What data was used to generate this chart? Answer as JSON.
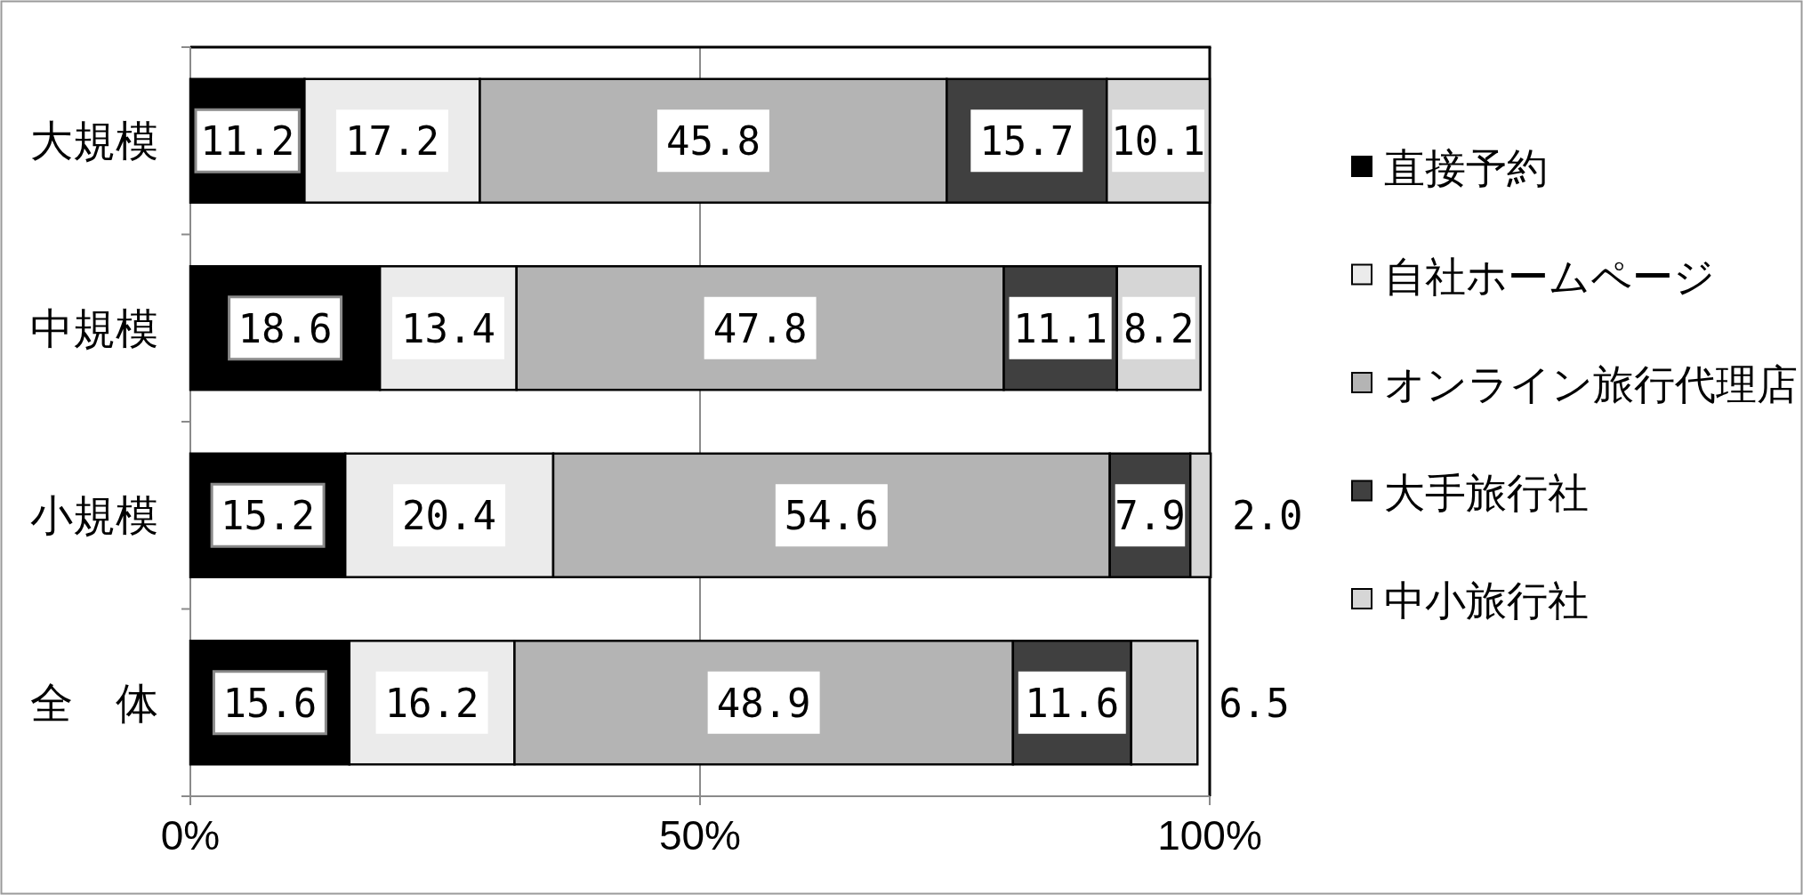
{
  "chart_data": {
    "type": "bar",
    "orientation": "horizontal",
    "stacked": true,
    "categories": [
      "大規模",
      "中規模",
      "小規模",
      "全　体"
    ],
    "series": [
      {
        "name": "直接予約",
        "color": "#000000",
        "values": [
          11.2,
          18.6,
          15.2,
          15.6
        ],
        "value_labels": [
          "11.2",
          "18.6",
          "15.2",
          "15.6"
        ]
      },
      {
        "name": "自社ホームページ",
        "color": "#ebebeb",
        "values": [
          17.2,
          13.4,
          20.4,
          16.2
        ],
        "value_labels": [
          "17.2",
          "13.4",
          "20.4",
          "16.2"
        ]
      },
      {
        "name": "オンライン旅行代理店",
        "color": "#b4b4b4",
        "values": [
          45.8,
          47.8,
          54.6,
          48.9
        ],
        "value_labels": [
          "45.8",
          "47.8",
          "54.6",
          "48.9"
        ]
      },
      {
        "name": "大手旅行社",
        "color": "#404040",
        "values": [
          15.7,
          11.1,
          7.9,
          11.6
        ],
        "value_labels": [
          "15.7",
          "11.1",
          "7.9",
          "11.6"
        ]
      },
      {
        "name": "中小旅行社",
        "color": "#d6d6d6",
        "values": [
          10.1,
          8.2,
          2.0,
          6.5
        ],
        "value_labels": [
          "10.1",
          "8.2",
          "2.0",
          "6.5"
        ]
      }
    ],
    "xlim": [
      0,
      100
    ],
    "xticks": [
      {
        "value": 0,
        "label": "0%"
      },
      {
        "value": 50,
        "label": "50%"
      },
      {
        "value": 100,
        "label": "100%"
      }
    ],
    "grid": "x",
    "legend": "right"
  }
}
